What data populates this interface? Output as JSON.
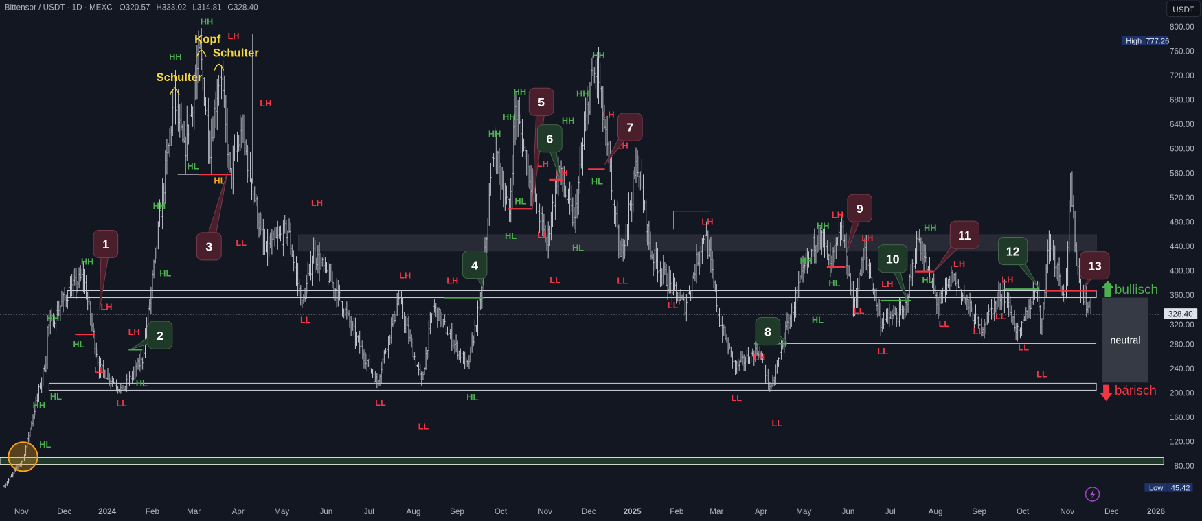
{
  "header": {
    "symbol": "Bittensor / USDT · 1D · MEXC",
    "open": "O320.57",
    "high": "H333.02",
    "low": "L314.81",
    "close": "C328.40",
    "currency_button": "USDT"
  },
  "price_axis": {
    "ticks": [
      "800.00",
      "760.00",
      "720.00",
      "680.00",
      "640.00",
      "600.00",
      "560.00",
      "520.00",
      "480.00",
      "440.00",
      "400.00",
      "360.00",
      "320.00",
      "280.00",
      "240.00",
      "200.00",
      "160.00",
      "120.00",
      "80.00"
    ],
    "high_label": "High",
    "high_value": "777.26",
    "low_label": "Low",
    "low_value": "45.42",
    "last_price": "328.40"
  },
  "time_axis": {
    "ticks": [
      "Nov",
      "Dec",
      "2024",
      "Feb",
      "Mar",
      "Apr",
      "May",
      "Jun",
      "Jul",
      "Aug",
      "Sep",
      "Oct",
      "Nov",
      "Dec",
      "2025",
      "Feb",
      "Mar",
      "Apr",
      "May",
      "Jun",
      "Jul",
      "Aug",
      "Sep",
      "Oct",
      "Nov",
      "Dec",
      "2026"
    ]
  },
  "colors": {
    "background": "#131722",
    "bars": "#c3c6ce",
    "bull": "#4caf50",
    "bear": "#f23645",
    "pattern": "#f5d742",
    "highlight": "#f7a21b"
  },
  "chart_data": {
    "type": "ohlc",
    "title": "Bittensor / USDT · 1D · MEXC",
    "ylim": [
      45.42,
      800
    ],
    "y_high": 777.26,
    "y_low": 45.42,
    "last_close": 328.4,
    "x_start": "2023-11",
    "price_path_day_price": [
      [
        -12,
        47
      ],
      [
        1,
        91
      ],
      [
        17,
        254
      ],
      [
        18,
        304
      ],
      [
        33,
        367
      ],
      [
        43,
        390
      ],
      [
        54,
        241
      ],
      [
        70,
        204
      ],
      [
        84,
        254
      ],
      [
        92,
        404
      ],
      [
        106,
        680
      ],
      [
        113,
        592
      ],
      [
        124,
        755
      ],
      [
        131,
        605
      ],
      [
        138,
        730
      ],
      [
        145,
        554
      ],
      [
        153,
        630
      ],
      [
        161,
        530
      ],
      [
        169,
        430
      ],
      [
        185,
        467
      ],
      [
        195,
        342
      ],
      [
        203,
        430
      ],
      [
        219,
        367
      ],
      [
        232,
        292
      ],
      [
        247,
        216
      ],
      [
        262,
        354
      ],
      [
        278,
        216
      ],
      [
        286,
        342
      ],
      [
        310,
        241
      ],
      [
        320,
        367
      ],
      [
        328,
        605
      ],
      [
        339,
        492
      ],
      [
        343,
        667
      ],
      [
        352,
        567
      ],
      [
        365,
        442
      ],
      [
        373,
        567
      ],
      [
        384,
        479
      ],
      [
        395,
        704
      ],
      [
        400,
        730
      ],
      [
        411,
        517
      ],
      [
        416,
        417
      ],
      [
        428,
        580
      ],
      [
        437,
        430
      ],
      [
        453,
        367
      ],
      [
        461,
        342
      ],
      [
        475,
        467
      ],
      [
        485,
        317
      ],
      [
        496,
        241
      ],
      [
        512,
        270
      ],
      [
        521,
        204
      ],
      [
        530,
        292
      ],
      [
        541,
        379
      ],
      [
        554,
        467
      ],
      [
        562,
        405
      ],
      [
        570,
        467
      ],
      [
        578,
        342
      ],
      [
        586,
        430
      ],
      [
        597,
        317
      ],
      [
        613,
        330
      ],
      [
        623,
        454
      ],
      [
        637,
        342
      ],
      [
        647,
        392
      ],
      [
        666,
        304
      ],
      [
        682,
        367
      ],
      [
        693,
        292
      ],
      [
        706,
        380
      ],
      [
        708,
        300
      ],
      [
        714,
        454
      ],
      [
        725,
        360
      ],
      [
        729,
        530
      ],
      [
        735,
        380
      ],
      [
        743,
        328.4
      ]
    ],
    "pattern_labels": {
      "left_shoulder": "Schulter",
      "head": "Kopf",
      "right_shoulder": "Schulter"
    },
    "swing_labels": [
      "HH",
      "HH",
      "HH",
      "HH",
      "HH",
      "HH",
      "HH",
      "HH",
      "HH",
      "HH",
      "HH",
      "HH",
      "HH",
      "HH",
      "HH",
      "HL",
      "HL",
      "HL",
      "HL",
      "HL",
      "HL",
      "HL",
      "HL",
      "HL",
      "HL",
      "HL",
      "HL",
      "HL",
      "HL",
      "LH",
      "LH",
      "LH",
      "LH",
      "LH",
      "LH",
      "LH",
      "LH",
      "LH",
      "LH",
      "LH",
      "LH",
      "LH",
      "LH",
      "LH",
      "LH",
      "LH",
      "LH",
      "HL",
      "LL",
      "LL",
      "LL",
      "LL",
      "LL",
      "LL",
      "LL",
      "LL",
      "LL",
      "LL",
      "LL",
      "LL",
      "LL",
      "LL",
      "LL",
      "LL",
      "LL",
      "LL",
      "LL"
    ],
    "callouts": [
      "1",
      "2",
      "3",
      "4",
      "5",
      "6",
      "7",
      "8",
      "9",
      "10",
      "11",
      "12",
      "13"
    ],
    "zones": {
      "bullish": "bullisch",
      "neutral": "neutral",
      "bearish": "bärisch"
    }
  }
}
